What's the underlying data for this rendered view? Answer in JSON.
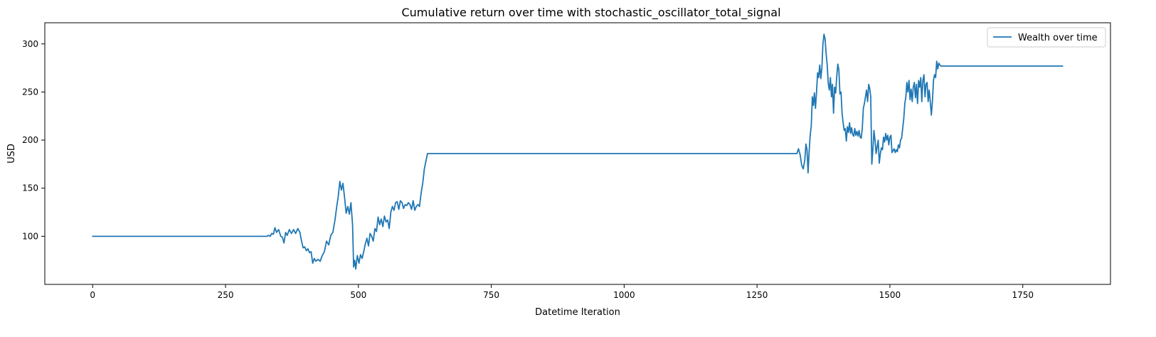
{
  "chart_data": {
    "type": "line",
    "title": "Cumulative return over time with stochastic_oscillator_total_signal",
    "xlabel": "Datetime Iteration",
    "ylabel": "USD",
    "xlim": [
      -90,
      1915
    ],
    "ylim": [
      50,
      322
    ],
    "xticks": [
      0,
      250,
      500,
      750,
      1000,
      1250,
      1500,
      1750
    ],
    "yticks": [
      100,
      150,
      200,
      250,
      300
    ],
    "grid": false,
    "legend": {
      "placement": "top-right",
      "entries": [
        "Wealth over time"
      ]
    },
    "colors": {
      "line": "#1f77b4",
      "axis": "#000000",
      "background": "#ffffff"
    },
    "series": [
      {
        "name": "Wealth over time",
        "points": [
          [
            0,
            100
          ],
          [
            328,
            100
          ],
          [
            331,
            101
          ],
          [
            334,
            100
          ],
          [
            337,
            103
          ],
          [
            340,
            102
          ],
          [
            343,
            109
          ],
          [
            346,
            104
          ],
          [
            350,
            107
          ],
          [
            354,
            100
          ],
          [
            357,
            99
          ],
          [
            360,
            93
          ],
          [
            363,
            104
          ],
          [
            366,
            101
          ],
          [
            370,
            107
          ],
          [
            374,
            103
          ],
          [
            378,
            107
          ],
          [
            382,
            103
          ],
          [
            386,
            108
          ],
          [
            390,
            104
          ],
          [
            393,
            95
          ],
          [
            396,
            88
          ],
          [
            399,
            89
          ],
          [
            402,
            85
          ],
          [
            405,
            87
          ],
          [
            408,
            83
          ],
          [
            411,
            84
          ],
          [
            414,
            72
          ],
          [
            417,
            77
          ],
          [
            420,
            74
          ],
          [
            424,
            76
          ],
          [
            428,
            74
          ],
          [
            432,
            80
          ],
          [
            436,
            84
          ],
          [
            440,
            95
          ],
          [
            444,
            91
          ],
          [
            448,
            101
          ],
          [
            452,
            104
          ],
          [
            456,
            117
          ],
          [
            459,
            130
          ],
          [
            462,
            141
          ],
          [
            465,
            157
          ],
          [
            468,
            148
          ],
          [
            471,
            155
          ],
          [
            474,
            140
          ],
          [
            477,
            124
          ],
          [
            480,
            131
          ],
          [
            483,
            123
          ],
          [
            486,
            135
          ],
          [
            489,
            112
          ],
          [
            491,
            68
          ],
          [
            493,
            75
          ],
          [
            495,
            66
          ],
          [
            498,
            80
          ],
          [
            501,
            72
          ],
          [
            504,
            81
          ],
          [
            507,
            77
          ],
          [
            510,
            84
          ],
          [
            513,
            92
          ],
          [
            516,
            98
          ],
          [
            519,
            90
          ],
          [
            522,
            103
          ],
          [
            525,
            100
          ],
          [
            528,
            95
          ],
          [
            531,
            108
          ],
          [
            534,
            105
          ],
          [
            537,
            120
          ],
          [
            540,
            112
          ],
          [
            543,
            118
          ],
          [
            546,
            110
          ],
          [
            549,
            121
          ],
          [
            552,
            115
          ],
          [
            555,
            117
          ],
          [
            558,
            108
          ],
          [
            561,
            125
          ],
          [
            564,
            131
          ],
          [
            567,
            127
          ],
          [
            570,
            135
          ],
          [
            573,
            136
          ],
          [
            576,
            128
          ],
          [
            579,
            137
          ],
          [
            582,
            135
          ],
          [
            585,
            129
          ],
          [
            588,
            133
          ],
          [
            591,
            132
          ],
          [
            594,
            135
          ],
          [
            597,
            133
          ],
          [
            600,
            128
          ],
          [
            603,
            137
          ],
          [
            606,
            127
          ],
          [
            609,
            131
          ],
          [
            612,
            133
          ],
          [
            615,
            131
          ],
          [
            618,
            145
          ],
          [
            621,
            155
          ],
          [
            624,
            170
          ],
          [
            627,
            178
          ],
          [
            630,
            186
          ],
          [
            1325,
            186
          ],
          [
            1328,
            191
          ],
          [
            1331,
            185
          ],
          [
            1334,
            174
          ],
          [
            1337,
            170
          ],
          [
            1340,
            180
          ],
          [
            1342,
            196
          ],
          [
            1344,
            190
          ],
          [
            1346,
            166
          ],
          [
            1348,
            188
          ],
          [
            1350,
            205
          ],
          [
            1352,
            215
          ],
          [
            1354,
            245
          ],
          [
            1356,
            236
          ],
          [
            1358,
            249
          ],
          [
            1360,
            233
          ],
          [
            1362,
            250
          ],
          [
            1364,
            270
          ],
          [
            1366,
            265
          ],
          [
            1368,
            278
          ],
          [
            1370,
            264
          ],
          [
            1372,
            275
          ],
          [
            1374,
            300
          ],
          [
            1376,
            310
          ],
          [
            1378,
            305
          ],
          [
            1380,
            290
          ],
          [
            1382,
            278
          ],
          [
            1384,
            259
          ],
          [
            1386,
            252
          ],
          [
            1388,
            265
          ],
          [
            1390,
            245
          ],
          [
            1392,
            258
          ],
          [
            1394,
            228
          ],
          [
            1396,
            255
          ],
          [
            1398,
            249
          ],
          [
            1400,
            266
          ],
          [
            1402,
            279
          ],
          [
            1404,
            273
          ],
          [
            1406,
            248
          ],
          [
            1408,
            250
          ],
          [
            1410,
            228
          ],
          [
            1412,
            218
          ],
          [
            1414,
            210
          ],
          [
            1416,
            212
          ],
          [
            1418,
            199
          ],
          [
            1420,
            214
          ],
          [
            1422,
            208
          ],
          [
            1424,
            218
          ],
          [
            1426,
            207
          ],
          [
            1428,
            213
          ],
          [
            1430,
            206
          ],
          [
            1432,
            204
          ],
          [
            1434,
            212
          ],
          [
            1436,
            205
          ],
          [
            1438,
            209
          ],
          [
            1440,
            204
          ],
          [
            1442,
            210
          ],
          [
            1444,
            203
          ],
          [
            1446,
            202
          ],
          [
            1448,
            212
          ],
          [
            1450,
            233
          ],
          [
            1452,
            238
          ],
          [
            1454,
            245
          ],
          [
            1456,
            252
          ],
          [
            1458,
            240
          ],
          [
            1460,
            258
          ],
          [
            1462,
            254
          ],
          [
            1464,
            245
          ],
          [
            1466,
            175
          ],
          [
            1468,
            190
          ],
          [
            1470,
            210
          ],
          [
            1472,
            200
          ],
          [
            1474,
            186
          ],
          [
            1476,
            193
          ],
          [
            1478,
            200
          ],
          [
            1480,
            176
          ],
          [
            1482,
            186
          ],
          [
            1484,
            192
          ],
          [
            1486,
            190
          ],
          [
            1488,
            203
          ],
          [
            1490,
            198
          ],
          [
            1492,
            207
          ],
          [
            1494,
            200
          ],
          [
            1496,
            205
          ],
          [
            1498,
            195
          ],
          [
            1500,
            203
          ],
          [
            1502,
            205
          ],
          [
            1504,
            187
          ],
          [
            1506,
            189
          ],
          [
            1508,
            191
          ],
          [
            1510,
            187
          ],
          [
            1512,
            190
          ],
          [
            1514,
            188
          ],
          [
            1516,
            195
          ],
          [
            1518,
            192
          ],
          [
            1520,
            200
          ],
          [
            1522,
            202
          ],
          [
            1524,
            212
          ],
          [
            1526,
            222
          ],
          [
            1528,
            238
          ],
          [
            1530,
            245
          ],
          [
            1532,
            260
          ],
          [
            1534,
            250
          ],
          [
            1536,
            262
          ],
          [
            1538,
            242
          ],
          [
            1540,
            253
          ],
          [
            1542,
            240
          ],
          [
            1544,
            255
          ],
          [
            1546,
            260
          ],
          [
            1548,
            244
          ],
          [
            1550,
            258
          ],
          [
            1552,
            238
          ],
          [
            1554,
            262
          ],
          [
            1556,
            255
          ],
          [
            1558,
            265
          ],
          [
            1560,
            240
          ],
          [
            1562,
            262
          ],
          [
            1564,
            268
          ],
          [
            1566,
            245
          ],
          [
            1568,
            258
          ],
          [
            1570,
            260
          ],
          [
            1572,
            240
          ],
          [
            1574,
            252
          ],
          [
            1576,
            240
          ],
          [
            1578,
            226
          ],
          [
            1580,
            240
          ],
          [
            1582,
            262
          ],
          [
            1584,
            268
          ],
          [
            1586,
            265
          ],
          [
            1588,
            282
          ],
          [
            1590,
            274
          ],
          [
            1592,
            280
          ],
          [
            1594,
            278
          ],
          [
            1596,
            277
          ],
          [
            1600,
            277
          ],
          [
            1825,
            277
          ]
        ]
      }
    ]
  }
}
